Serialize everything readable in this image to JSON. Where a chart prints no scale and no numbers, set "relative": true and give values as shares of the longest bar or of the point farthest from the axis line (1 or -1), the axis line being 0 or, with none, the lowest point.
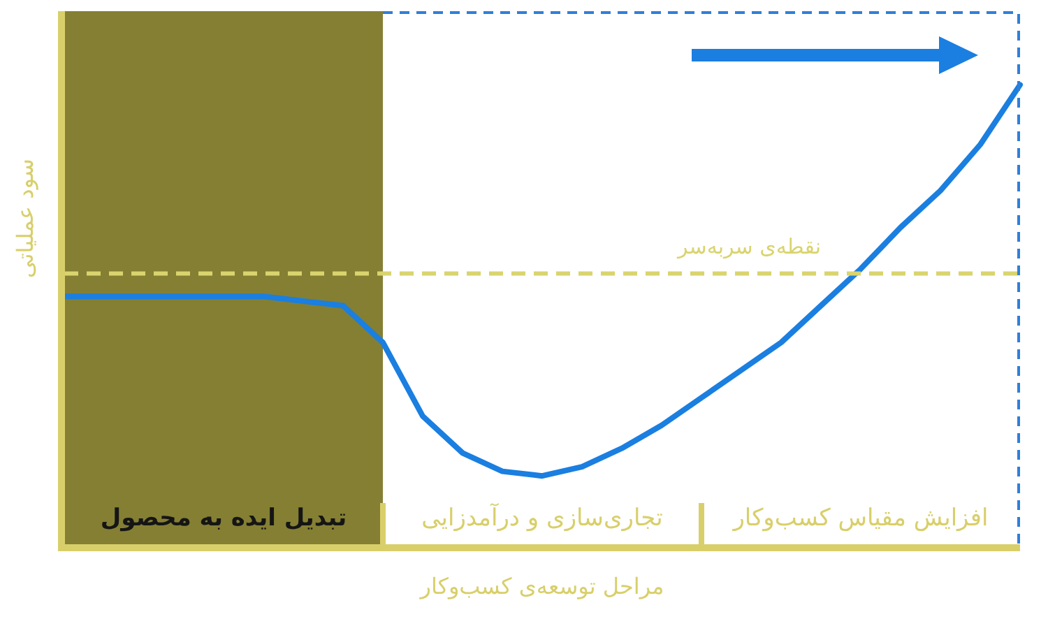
{
  "chart_data": {
    "type": "line",
    "relative": true,
    "xlabel": "مراحل توسعه‌ی کسب‌وکار",
    "ylabel": "سود عملیاتی",
    "legend": false,
    "marker": "none",
    "categories": [
      null,
      null,
      null,
      null,
      null,
      null,
      null,
      null,
      null,
      null,
      null,
      null,
      null,
      null,
      null,
      null,
      null,
      null,
      null,
      null,
      null,
      null,
      null,
      null,
      null
    ],
    "series": [
      {
        "color": "#1a7fe0",
        "line_style": "solid",
        "values": [
          0.54,
          0.54,
          0.54,
          0.54,
          0.54,
          0.54,
          0.53,
          0.52,
          0.44,
          0.28,
          0.2,
          0.16,
          0.15,
          0.17,
          0.21,
          0.26,
          0.32,
          0.38,
          0.44,
          0.52,
          0.6,
          0.69,
          0.77,
          0.87,
          1
        ]
      },
      {
        "name": "نقطه‌ی سربه‌سر",
        "color": "#d9d46e",
        "line_style": "dashed",
        "values": [
          0.59,
          0.59,
          0.59,
          0.59,
          0.59,
          0.59,
          0.59,
          0.59,
          0.59,
          0.59,
          0.59,
          0.59,
          0.59,
          0.59,
          0.59,
          0.59,
          0.59,
          0.59,
          0.59,
          0.59,
          0.59,
          0.59,
          0.59,
          0.59,
          0.59
        ]
      }
    ],
    "annotations": [
      "تبدیل ایده به محصول",
      "تجاری‌سازی و درآمدزایی",
      "افزایش مقیاس کسب‌وکار"
    ]
  }
}
